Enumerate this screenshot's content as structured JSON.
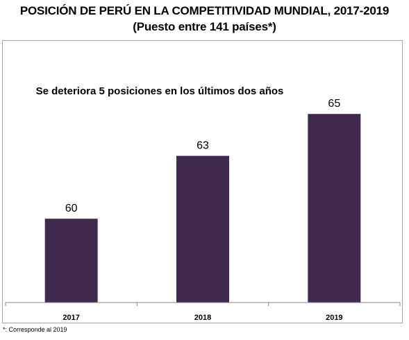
{
  "title_line1": "POSICIÓN DE PERÚ EN LA COMPETITIVIDAD MUNDIAL, 2017-2019",
  "title_line2": "(Puesto entre 141 países*)",
  "footnote": "*: Corresponde al 2019",
  "colors": {
    "bar": "#3f2a4d",
    "axis": "#868686",
    "frame": "#a6a6a6"
  },
  "chart_data": {
    "type": "bar",
    "categories": [
      "2017",
      "2018",
      "2019"
    ],
    "values": [
      60,
      63,
      65
    ],
    "ylim": [
      56,
      66
    ],
    "annotation": "Se deteriora 5 posiciones en los últimos dos años",
    "grid": false,
    "legend": "none"
  }
}
